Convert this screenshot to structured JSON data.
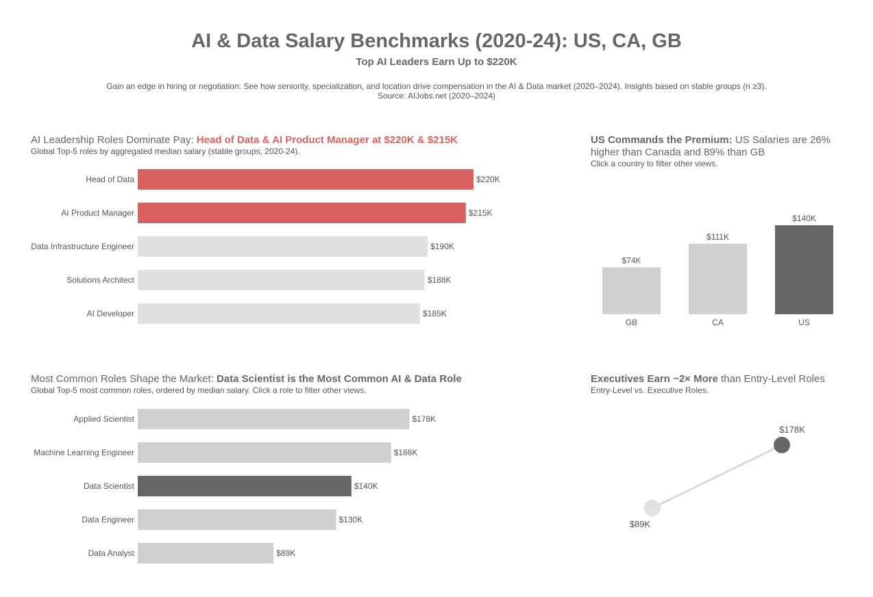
{
  "header": {
    "title": "AI & Data Salary Benchmarks (2020-24): US, CA, GB",
    "subtitle": "Top AI Leaders Earn Up to $220K",
    "description": "Gain an edge in hiring or negotiation: See how seniority, specialization, and location drive compensation in the AI & Data market (2020–2024). Insights based on stable groups (n ≥3).",
    "source": "Source: AIJobs.net (2020–2024)"
  },
  "colors": {
    "highlight": "#d9625e",
    "dark": "#666666",
    "light": "#d0d0d0",
    "lighter": "#e0e0e0"
  },
  "panels": {
    "leadership": {
      "title_plain": "AI Leadership Roles Dominate Pay: ",
      "title_bold": "Head of Data & AI Product Manager at $220K & $215K",
      "subtitle": "Global Top-5 roles by aggregated median salary (stable groups, 2020-24)."
    },
    "country": {
      "title_bold": "US Commands the Premium:",
      "title_plain": " US Salaries are 26% higher than Canada and 89% than GB",
      "subtitle": "Click a country to filter other views."
    },
    "common": {
      "title_plain": "Most Common Roles Shape the Market: ",
      "title_bold": "Data Scientist is the Most Common AI & Data Role",
      "subtitle": "Global Top-5 most common roles, ordered by median salary. Click a role to filter other views."
    },
    "seniority": {
      "title_bold": "Executives Earn ~2× More",
      "title_plain": " than Entry-Level Roles",
      "subtitle": "Entry-Level vs. Executive Roles."
    }
  },
  "chart_data": [
    {
      "id": "leadership",
      "type": "bar",
      "orientation": "horizontal",
      "categories": [
        "Head of Data",
        "AI Product Manager",
        "Data Infrastructure Engineer",
        "Solutions Architect",
        "AI Developer"
      ],
      "values": [
        220,
        215,
        190,
        188,
        185
      ],
      "labels": [
        "$220K",
        "$215K",
        "$190K",
        "$188K",
        "$185K"
      ],
      "colors": [
        "#d9625e",
        "#d9625e",
        "#e0e0e0",
        "#e0e0e0",
        "#e0e0e0"
      ],
      "unit": "USD thousands"
    },
    {
      "id": "country",
      "type": "bar",
      "orientation": "vertical",
      "categories": [
        "GB",
        "CA",
        "US"
      ],
      "values": [
        74,
        111,
        140
      ],
      "labels": [
        "$74K",
        "$111K",
        "$140K"
      ],
      "colors": [
        "#d0d0d0",
        "#d0d0d0",
        "#666666"
      ],
      "unit": "USD thousands"
    },
    {
      "id": "common",
      "type": "bar",
      "orientation": "horizontal",
      "categories": [
        "Applied Scientist",
        "Machine Learning Engineer",
        "Data Scientist",
        "Data Engineer",
        "Data Analyst"
      ],
      "values": [
        178,
        166,
        140,
        130,
        89
      ],
      "labels": [
        "$178K",
        "$166K",
        "$140K",
        "$130K",
        "$89K"
      ],
      "colors": [
        "#d0d0d0",
        "#d0d0d0",
        "#666666",
        "#d0d0d0",
        "#d0d0d0"
      ],
      "unit": "USD thousands"
    },
    {
      "id": "seniority",
      "type": "line",
      "categories": [
        "Entry-Level",
        "Executive"
      ],
      "values": [
        89,
        178
      ],
      "labels": [
        "$89K",
        "$178K"
      ],
      "colors": [
        "#e0e0e0",
        "#666666"
      ],
      "unit": "USD thousands"
    }
  ]
}
